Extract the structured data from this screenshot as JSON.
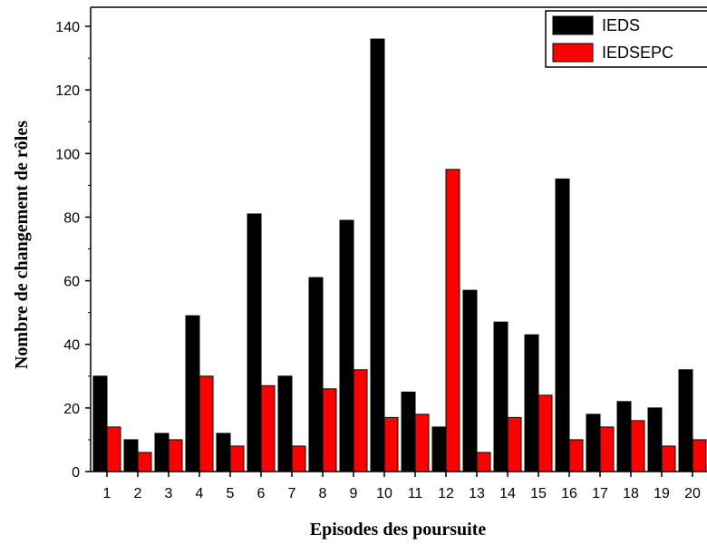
{
  "chart_data": {
    "type": "bar",
    "xlabel": "Episodes des poursuite",
    "ylabel": "Nombre de changement de rôles",
    "categories": [
      "1",
      "2",
      "3",
      "4",
      "5",
      "6",
      "7",
      "8",
      "9",
      "10",
      "11",
      "12",
      "13",
      "14",
      "15",
      "16",
      "17",
      "18",
      "19",
      "20"
    ],
    "series": [
      {
        "name": "IEDS",
        "color": "#000000",
        "values": [
          30,
          10,
          12,
          49,
          12,
          81,
          30,
          61,
          79,
          136,
          25,
          14,
          57,
          47,
          43,
          92,
          18,
          22,
          20,
          32
        ]
      },
      {
        "name": "IEDSEPC",
        "color": "#ff0000",
        "values": [
          14,
          6,
          10,
          30,
          8,
          27,
          8,
          26,
          32,
          17,
          18,
          95,
          6,
          17,
          24,
          10,
          14,
          16,
          8,
          10
        ]
      }
    ],
    "ylim": [
      0,
      146
    ],
    "yticks": [
      0,
      20,
      40,
      60,
      80,
      100,
      120,
      140
    ],
    "grid": false,
    "legend_position": "top-right"
  }
}
